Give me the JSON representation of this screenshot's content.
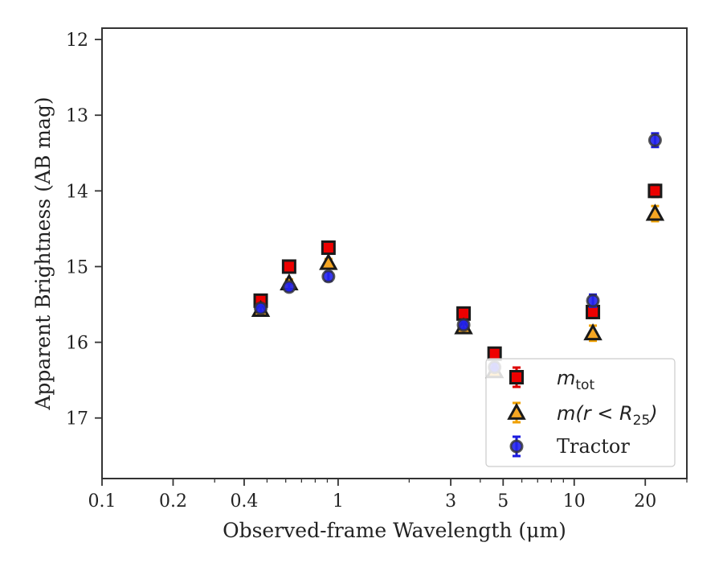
{
  "chart_data": {
    "type": "scatter",
    "title": "",
    "xlabel": "Observed-frame Wavelength (μm)",
    "ylabel": "Apparent Brightness (AB mag)",
    "x_scale": "log",
    "xlim": [
      0.1,
      30
    ],
    "ylim": [
      17.8,
      11.85
    ],
    "y_inverted": true,
    "grid": false,
    "legend_position": "lower-right",
    "x_ticks": [
      {
        "value": 0.1,
        "label": "0.1"
      },
      {
        "value": 0.2,
        "label": "0.2"
      },
      {
        "value": 0.4,
        "label": "0.4"
      },
      {
        "value": 1,
        "label": "1"
      },
      {
        "value": 3,
        "label": "3"
      },
      {
        "value": 5,
        "label": "5"
      },
      {
        "value": 10,
        "label": "10"
      },
      {
        "value": 20,
        "label": "20"
      }
    ],
    "y_ticks": [
      {
        "value": 12,
        "label": "12"
      },
      {
        "value": 13,
        "label": "13"
      },
      {
        "value": 14,
        "label": "14"
      },
      {
        "value": 15,
        "label": "15"
      },
      {
        "value": 16,
        "label": "16"
      },
      {
        "value": 17,
        "label": "17"
      }
    ],
    "series": [
      {
        "name": "m_tot",
        "legend_main": "m",
        "legend_sub": "tot",
        "marker": "square",
        "color": "#ee0000",
        "error_color": "#dd0000",
        "x": [
          0.47,
          0.62,
          0.91,
          3.4,
          4.6,
          12,
          22
        ],
        "y": [
          15.45,
          15.0,
          14.75,
          15.62,
          16.15,
          15.6,
          14.0
        ],
        "yerr": [
          0.05,
          0.05,
          0.05,
          0.07,
          0.05,
          0.08,
          0.08
        ]
      },
      {
        "name": "m(r<R25)",
        "legend_main": "m(r < R",
        "legend_sub": "25",
        "legend_tail": ")",
        "marker": "triangle",
        "color": "#f5a623",
        "error_color": "#f0a000",
        "x": [
          0.47,
          0.62,
          0.91,
          3.4,
          4.6,
          12,
          22
        ],
        "y": [
          15.57,
          15.22,
          14.95,
          15.8,
          16.38,
          15.88,
          14.3
        ],
        "yerr": [
          0.05,
          0.05,
          0.05,
          0.05,
          0.05,
          0.1,
          0.1
        ]
      },
      {
        "name": "Tractor",
        "legend_main": "Tractor",
        "marker": "circle",
        "color": "#2222ee",
        "error_color": "#1a1ae0",
        "x": [
          0.47,
          0.62,
          0.91,
          3.4,
          4.6,
          12,
          22
        ],
        "y": [
          15.55,
          15.27,
          15.13,
          15.77,
          16.33,
          15.45,
          13.33
        ],
        "yerr": [
          0.05,
          0.05,
          0.06,
          0.05,
          0.05,
          0.08,
          0.09
        ]
      }
    ]
  }
}
